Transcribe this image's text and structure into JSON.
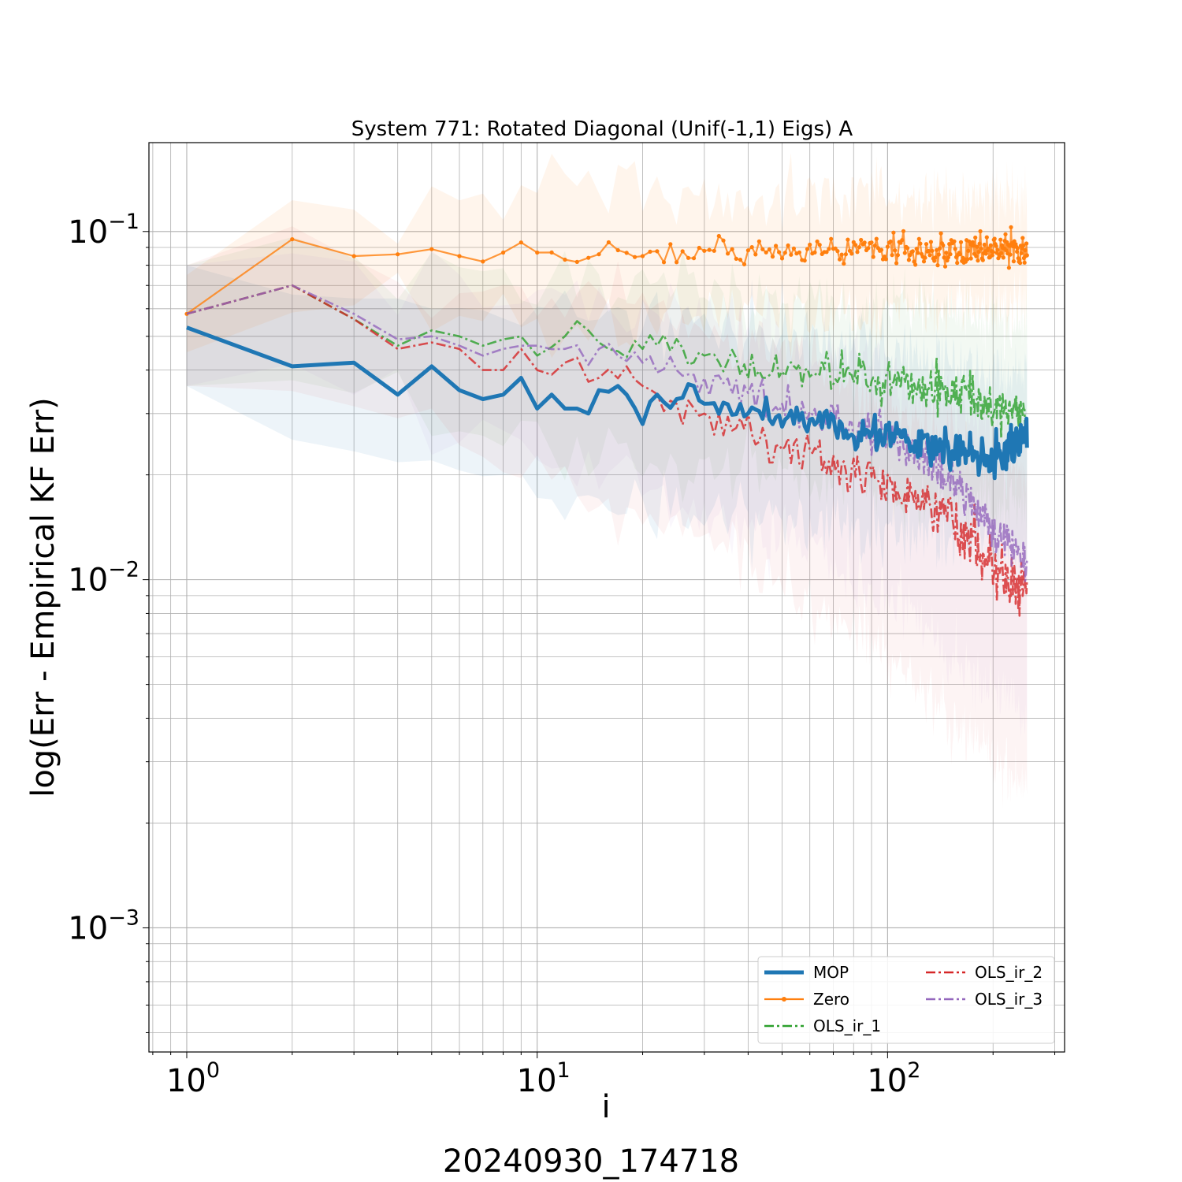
{
  "chart_data": {
    "type": "line",
    "title": "System 771: Rotated Diagonal (Unif(-1,1) Eigs) A",
    "xlabel": "i",
    "ylabel": "log(Err - Empirical KF Err)",
    "footer": "20240930_174718",
    "xscale": "log",
    "yscale": "log",
    "xlim": [
      0.78,
      320
    ],
    "ylim": [
      0.00044,
      0.18
    ],
    "grid": true,
    "legend_position": "lower-right",
    "x_ticks": [
      {
        "value": 1,
        "base": "10",
        "exp": "0"
      },
      {
        "value": 10,
        "base": "10",
        "exp": "1"
      },
      {
        "value": 100,
        "base": "10",
        "exp": "2"
      }
    ],
    "y_ticks": [
      {
        "value": 0.1,
        "base": "10",
        "exp": "−1"
      },
      {
        "value": 0.01,
        "base": "10",
        "exp": "−2"
      },
      {
        "value": 0.001,
        "base": "10",
        "exp": "−3"
      }
    ],
    "n_points": 250,
    "series": [
      {
        "name": "MOP",
        "color": "#1f77b4",
        "style": "solid",
        "width": 5,
        "marker": false,
        "band_alpha": 0.08,
        "anchors": [
          [
            1,
            0.053
          ],
          [
            2,
            0.041
          ],
          [
            3,
            0.042
          ],
          [
            4,
            0.034
          ],
          [
            5,
            0.041
          ],
          [
            6,
            0.035
          ],
          [
            7,
            0.033
          ],
          [
            8,
            0.034
          ],
          [
            9,
            0.038
          ],
          [
            10,
            0.031
          ],
          [
            11,
            0.034
          ],
          [
            12,
            0.031
          ],
          [
            13,
            0.031
          ],
          [
            14,
            0.03
          ],
          [
            15,
            0.035
          ],
          [
            17,
            0.036
          ],
          [
            18,
            0.034
          ],
          [
            20,
            0.028
          ],
          [
            22,
            0.034
          ],
          [
            25,
            0.033
          ],
          [
            28,
            0.036
          ],
          [
            30,
            0.032
          ],
          [
            35,
            0.031
          ],
          [
            40,
            0.031
          ],
          [
            50,
            0.03
          ],
          [
            60,
            0.029
          ],
          [
            80,
            0.027
          ],
          [
            100,
            0.026
          ],
          [
            150,
            0.024
          ],
          [
            200,
            0.022
          ],
          [
            250,
            0.026
          ]
        ],
        "noise": [
          0.0,
          0.0,
          0.03,
          0.09
        ],
        "band": [
          [
            1,
            0.036,
            0.08
          ],
          [
            2,
            0.026,
            0.064
          ],
          [
            5,
            0.022,
            0.06
          ],
          [
            10,
            0.018,
            0.058
          ],
          [
            20,
            0.016,
            0.056
          ],
          [
            50,
            0.015,
            0.05
          ],
          [
            100,
            0.014,
            0.045
          ],
          [
            250,
            0.012,
            0.038
          ]
        ]
      },
      {
        "name": "Zero",
        "color": "#ff7f0e",
        "style": "solid",
        "width": 2.2,
        "marker": true,
        "band_alpha": 0.08,
        "anchors": [
          [
            1,
            0.058
          ],
          [
            2,
            0.095
          ],
          [
            3,
            0.085
          ],
          [
            4,
            0.086
          ],
          [
            5,
            0.089
          ],
          [
            6,
            0.085
          ],
          [
            7,
            0.082
          ],
          [
            8,
            0.087
          ],
          [
            9,
            0.093
          ],
          [
            10,
            0.087
          ],
          [
            12,
            0.083
          ],
          [
            15,
            0.086
          ],
          [
            20,
            0.085
          ],
          [
            30,
            0.088
          ],
          [
            50,
            0.088
          ],
          [
            100,
            0.089
          ],
          [
            150,
            0.088
          ],
          [
            200,
            0.089
          ],
          [
            250,
            0.09
          ]
        ],
        "noise": [
          0.0,
          0.02,
          0.05,
          0.07
        ],
        "band": [
          [
            1,
            0.045,
            0.075
          ],
          [
            2,
            0.06,
            0.12
          ],
          [
            5,
            0.058,
            0.12
          ],
          [
            10,
            0.058,
            0.125
          ],
          [
            20,
            0.058,
            0.125
          ],
          [
            50,
            0.058,
            0.125
          ],
          [
            100,
            0.06,
            0.125
          ],
          [
            250,
            0.062,
            0.125
          ]
        ]
      },
      {
        "name": "OLS_ir_1",
        "color": "#2ca02c",
        "style": "dashdot",
        "width": 2.6,
        "marker": false,
        "band_alpha": 0.06,
        "anchors": [
          [
            1,
            0.058
          ],
          [
            2,
            0.07
          ],
          [
            3,
            0.056
          ],
          [
            4,
            0.047
          ],
          [
            5,
            0.052
          ],
          [
            6,
            0.05
          ],
          [
            7,
            0.047
          ],
          [
            8,
            0.049
          ],
          [
            9,
            0.05
          ],
          [
            10,
            0.044
          ],
          [
            12,
            0.05
          ],
          [
            15,
            0.048
          ],
          [
            20,
            0.046
          ],
          [
            30,
            0.044
          ],
          [
            40,
            0.04
          ],
          [
            60,
            0.04
          ],
          [
            100,
            0.037
          ],
          [
            150,
            0.034
          ],
          [
            200,
            0.032
          ],
          [
            250,
            0.029
          ]
        ],
        "noise": [
          0.0,
          0.03,
          0.07,
          0.1
        ],
        "band": [
          [
            1,
            0.036,
            0.08
          ],
          [
            2,
            0.04,
            0.09
          ],
          [
            5,
            0.03,
            0.075
          ],
          [
            10,
            0.025,
            0.07
          ],
          [
            20,
            0.022,
            0.07
          ],
          [
            50,
            0.02,
            0.065
          ],
          [
            100,
            0.018,
            0.06
          ],
          [
            250,
            0.016,
            0.055
          ]
        ]
      },
      {
        "name": "OLS_ir_2",
        "color": "#d62728",
        "style": "dashdot",
        "width": 2.6,
        "marker": false,
        "band_alpha": 0.05,
        "anchors": [
          [
            1,
            0.058
          ],
          [
            2,
            0.07
          ],
          [
            3,
            0.056
          ],
          [
            4,
            0.046
          ],
          [
            5,
            0.048
          ],
          [
            6,
            0.046
          ],
          [
            7,
            0.04
          ],
          [
            8,
            0.04
          ],
          [
            9,
            0.046
          ],
          [
            10,
            0.04
          ],
          [
            12,
            0.042
          ],
          [
            15,
            0.038
          ],
          [
            20,
            0.036
          ],
          [
            25,
            0.032
          ],
          [
            30,
            0.03
          ],
          [
            40,
            0.026
          ],
          [
            50,
            0.024
          ],
          [
            70,
            0.022
          ],
          [
            100,
            0.019
          ],
          [
            130,
            0.016
          ],
          [
            170,
            0.013
          ],
          [
            200,
            0.011
          ],
          [
            250,
            0.0095
          ]
        ],
        "noise": [
          0.0,
          0.03,
          0.1,
          0.13
        ],
        "band": [
          [
            1,
            0.036,
            0.08
          ],
          [
            2,
            0.04,
            0.09
          ],
          [
            5,
            0.025,
            0.07
          ],
          [
            10,
            0.02,
            0.065
          ],
          [
            20,
            0.016,
            0.06
          ],
          [
            50,
            0.01,
            0.045
          ],
          [
            100,
            0.006,
            0.032
          ],
          [
            150,
            0.004,
            0.025
          ],
          [
            250,
            0.0025,
            0.02
          ]
        ]
      },
      {
        "name": "OLS_ir_3",
        "color": "#9467bd",
        "style": "dashdot",
        "width": 2.6,
        "marker": false,
        "band_alpha": 0.05,
        "anchors": [
          [
            1,
            0.058
          ],
          [
            2,
            0.07
          ],
          [
            3,
            0.058
          ],
          [
            4,
            0.049
          ],
          [
            5,
            0.05
          ],
          [
            6,
            0.047
          ],
          [
            7,
            0.044
          ],
          [
            8,
            0.046
          ],
          [
            9,
            0.047
          ],
          [
            10,
            0.047
          ],
          [
            12,
            0.046
          ],
          [
            15,
            0.046
          ],
          [
            20,
            0.042
          ],
          [
            25,
            0.04
          ],
          [
            30,
            0.038
          ],
          [
            40,
            0.034
          ],
          [
            50,
            0.031
          ],
          [
            70,
            0.029
          ],
          [
            100,
            0.026
          ],
          [
            130,
            0.022
          ],
          [
            170,
            0.017
          ],
          [
            200,
            0.014
          ],
          [
            250,
            0.011
          ]
        ],
        "noise": [
          0.0,
          0.03,
          0.08,
          0.11
        ],
        "band": [
          [
            1,
            0.036,
            0.08
          ],
          [
            2,
            0.04,
            0.09
          ],
          [
            5,
            0.028,
            0.072
          ],
          [
            10,
            0.022,
            0.068
          ],
          [
            20,
            0.018,
            0.062
          ],
          [
            50,
            0.013,
            0.05
          ],
          [
            100,
            0.009,
            0.04
          ],
          [
            150,
            0.006,
            0.032
          ],
          [
            250,
            0.004,
            0.026
          ]
        ]
      }
    ]
  }
}
